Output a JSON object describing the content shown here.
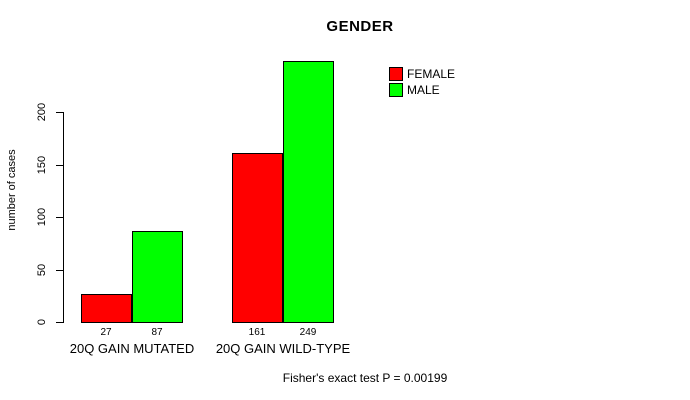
{
  "chart_data": {
    "type": "bar",
    "title": "GENDER",
    "ylabel": "number of cases",
    "xlabel": "",
    "categories": [
      "20Q GAIN MUTATED",
      "20Q GAIN WILD-TYPE"
    ],
    "series": [
      {
        "name": "FEMALE",
        "color": "#ff0000",
        "values": [
          27,
          161
        ]
      },
      {
        "name": "MALE",
        "color": "#00ff00",
        "values": [
          87,
          249
        ]
      }
    ],
    "yticks": [
      0,
      50,
      100,
      150,
      200
    ],
    "ylim": [
      0,
      249
    ],
    "grid": "off",
    "legend_position": "top-right",
    "bar_border_color": "#000000",
    "background_color": "#ffffff"
  },
  "footnote": "Fisher's exact test P = 0.00199"
}
